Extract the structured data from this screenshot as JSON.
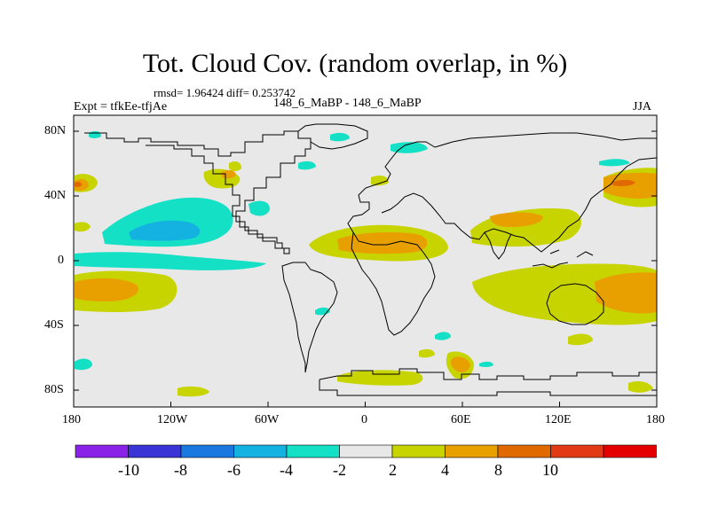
{
  "title": "Tot. Cloud Cov. (random overlap, in %)",
  "stats": "rmsd= 1.96424 diff= 0.253742",
  "experiment": "Expt = tfkEe-tfjAe",
  "case": "148_6_MaBP - 148_6_MaBP",
  "season": "JJA",
  "axes": {
    "x_ticks": [
      "180",
      "120W",
      "60W",
      "0",
      "60E",
      "120E",
      "180"
    ],
    "y_ticks": [
      "80N",
      "40N",
      "0",
      "40S",
      "80S"
    ]
  },
  "colorbar": {
    "colors": [
      "#8a22e8",
      "#3a34d6",
      "#1a78e0",
      "#14b2e0",
      "#14e0c6",
      "#e8e8e8",
      "#c8d400",
      "#e8a000",
      "#e06a00",
      "#e23a14",
      "#e40000"
    ],
    "labels": [
      "-10",
      "-8",
      "-6",
      "-4",
      "-2",
      "2",
      "4",
      "8",
      "10"
    ]
  },
  "colors": {
    "land_background": "#e8e8e8",
    "coast": "#000000"
  }
}
